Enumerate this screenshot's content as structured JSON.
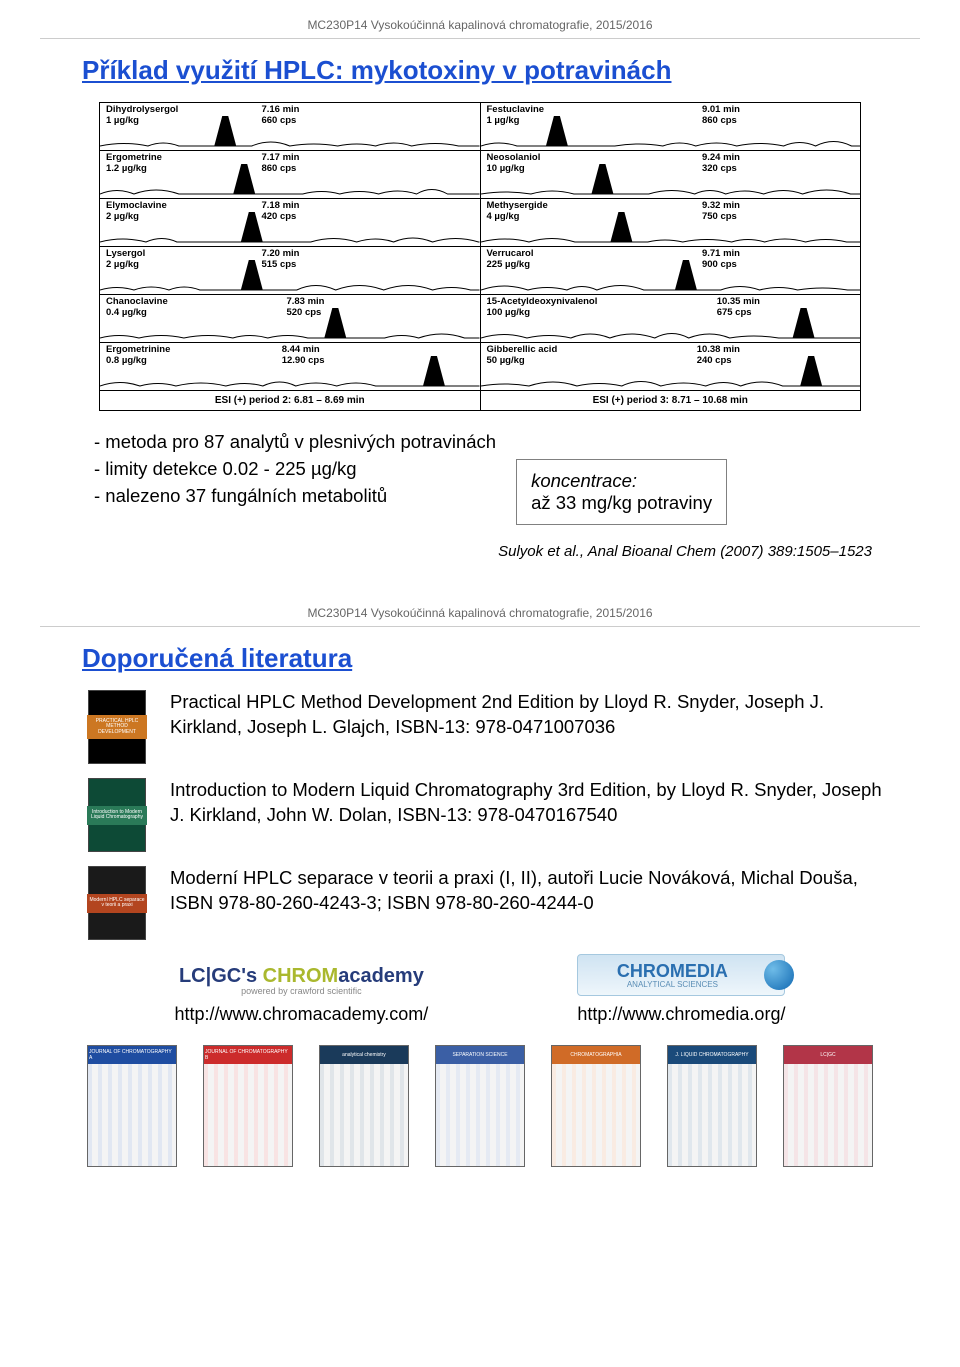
{
  "slide1": {
    "header": "MC230P14 Vysokoúčinná kapalinová chromatografie, 2015/2016",
    "title": "Příklad využití HPLC: mykotoxiny v potravinách",
    "left_traces": [
      {
        "name": "Dihydrolysergol",
        "conc": "1 µg/kg",
        "rt": "7.16 min",
        "cps": "660 cps",
        "peakX": 0.33,
        "valRight": 200
      },
      {
        "name": "Ergometrine",
        "conc": "1.2 µg/kg",
        "rt": "7.17 min",
        "cps": "860 cps",
        "peakX": 0.38,
        "valRight": 200
      },
      {
        "name": "Elymoclavine",
        "conc": "2 µg/kg",
        "rt": "7.18 min",
        "cps": "420 cps",
        "peakX": 0.4,
        "valRight": 200
      },
      {
        "name": "Lysergol",
        "conc": "2 µg/kg",
        "rt": "7.20 min",
        "cps": "515 cps",
        "peakX": 0.4,
        "valRight": 200
      },
      {
        "name": "Chanoclavine",
        "conc": "0.4 µg/kg",
        "rt": "7.83 min",
        "cps": "520 cps",
        "peakX": 0.62,
        "valRight": 225
      },
      {
        "name": "Ergometrinine",
        "conc": "0.8 µg/kg",
        "rt": "8.44 min",
        "cps": "12.90 cps",
        "peakX": 0.88,
        "valRight": 225
      }
    ],
    "right_traces": [
      {
        "name": "Festuclavine",
        "conc": "1 µg/kg",
        "rt": "9.01 min",
        "cps": "860 cps",
        "peakX": 0.2,
        "valRight": 260
      },
      {
        "name": "Neosolaniol",
        "conc": "10 µg/kg",
        "rt": "9.24 min",
        "cps": "320 cps",
        "peakX": 0.32,
        "valRight": 260
      },
      {
        "name": "Methysergide",
        "conc": "4 µg/kg",
        "rt": "9.32 min",
        "cps": "750 cps",
        "peakX": 0.37,
        "valRight": 260
      },
      {
        "name": "Verrucarol",
        "conc": "225 µg/kg",
        "rt": "9.71 min",
        "cps": "900 cps",
        "peakX": 0.54,
        "valRight": 260
      },
      {
        "name": "15-Acetyldeoxynivalenol",
        "conc": "100 µg/kg",
        "rt": "10.35 min",
        "cps": "675 cps",
        "peakX": 0.85,
        "valRight": 280
      },
      {
        "name": "Gibberellic acid",
        "conc": "50 µg/kg",
        "rt": "10.38 min",
        "cps": "240 cps",
        "peakX": 0.87,
        "valRight": 260
      }
    ],
    "esi_left": "ESI (+) period 2: 6.81 – 8.69 min",
    "esi_right": "ESI (+) period 3: 8.71 – 10.68 min",
    "bullets": [
      "- metoda pro 87 analytů v plesnivých potravinách",
      "- limity detekce 0.02 - 225 µg/kg",
      "- nalezeno 37 fungálních metabolitů"
    ],
    "konc_label": "koncentrace:",
    "konc_value": "až 33 mg/kg potraviny",
    "citation": "Sulyok et al., Anal Bioanal Chem (2007) 389:1505–1523"
  },
  "slide2": {
    "header": "MC230P14 Vysokoúčinná kapalinová chromatografie, 2015/2016",
    "title": "Doporučená literatura",
    "books": [
      {
        "text": "Practical HPLC Method Development 2nd Edition by Lloyd R. Snyder, Joseph J. Kirkland, Joseph L. Glajch, ISBN-13: 978-0471007036",
        "cover_bg": "#000000",
        "cover_accent": "#cc7722",
        "cover_label": "PRACTICAL HPLC METHOD DEVELOPMENT"
      },
      {
        "text": "Introduction to Modern Liquid Chromatography 3rd Edition, by Lloyd R. Snyder, Joseph J. Kirkland, John W. Dolan, ISBN-13: 978-0470167540",
        "cover_bg": "#0d4a36",
        "cover_accent": "#2a7a58",
        "cover_label": "Introduction to Modern Liquid Chromatography"
      },
      {
        "text": "Moderní HPLC separace v teorii a praxi (I, II), autoři Lucie Nováková, Michal Douša, ISBN 978-80-260-4243-3; ISBN 978-80-260-4244-0",
        "cover_bg": "#1a1a1a",
        "cover_accent": "#b3451f",
        "cover_label": "Moderní HPLC separace v teorii a praxi"
      }
    ],
    "links": {
      "chromacademy_logo_lc": "LC|GC's ",
      "chromacademy_logo_chrom": "CHROM",
      "chromacademy_logo_acad": "academy",
      "chromacademy_sub": "powered by crawford scientific",
      "chromacademy_url": "http://www.chromacademy.com/",
      "chromedia_logo": "CHROMEDIA",
      "chromedia_sub": "ANALYTICAL SCIENCES",
      "chromedia_url": "http://www.chromedia.org/"
    },
    "journals": [
      {
        "bar": "#1f4da1",
        "title": "JOURNAL OF CHROMATOGRAPHY A"
      },
      {
        "bar": "#cc2b2b",
        "title": "JOURNAL OF CHROMATOGRAPHY B"
      },
      {
        "bar": "#1a3a5a",
        "title": "analytical chemistry"
      },
      {
        "bar": "#3b5fa5",
        "title": "SEPARATION SCIENCE"
      },
      {
        "bar": "#d06b27",
        "title": "CHROMATOGRAPHIA"
      },
      {
        "bar": "#1a4a7a",
        "title": "J. LIQUID CHROMATOGRAPHY"
      },
      {
        "bar": "#b23548",
        "title": "LC|GC"
      }
    ]
  },
  "style": {
    "title_color": "#1b4fd1",
    "peak_fill": "#000000",
    "baseline_stroke": "#000000"
  }
}
